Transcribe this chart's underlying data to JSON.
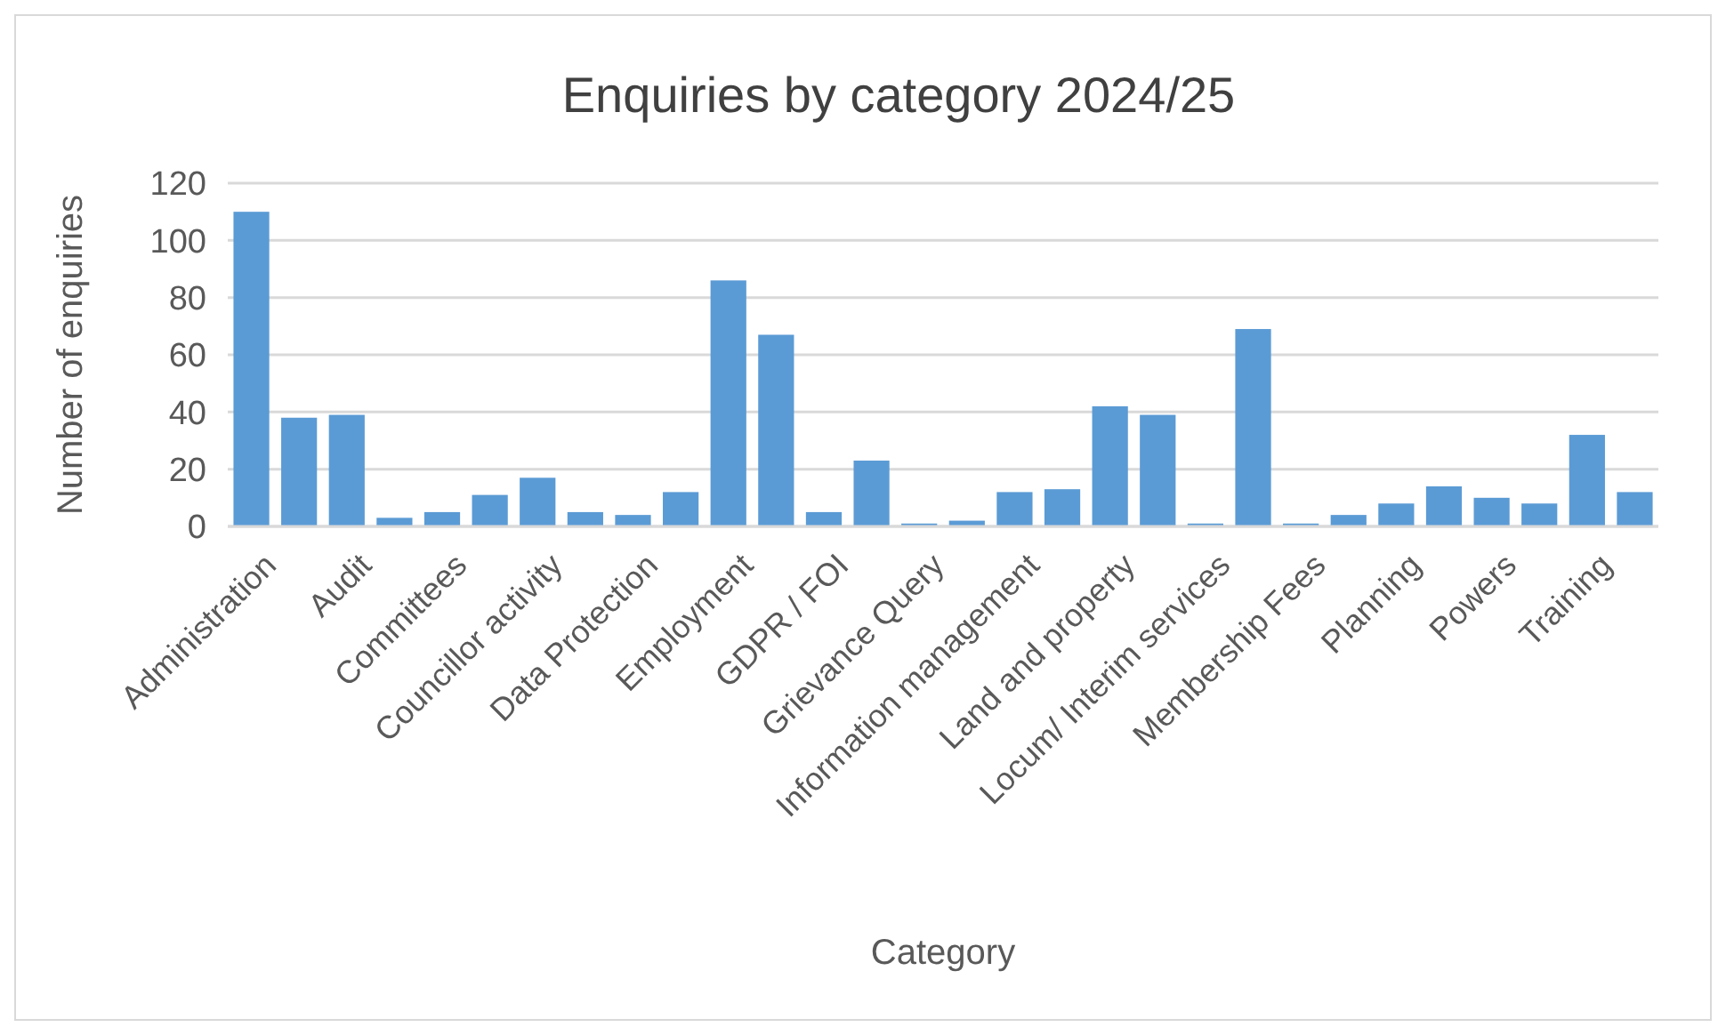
{
  "chart_data": {
    "type": "bar",
    "title": "Enquiries by category 2024/25",
    "xlabel": "Category",
    "ylabel": "Number of enquiries",
    "categories": [
      "Administration",
      null,
      "Audit",
      null,
      "Committees",
      null,
      "Councillor activity",
      null,
      "Data Protection",
      null,
      "Employment",
      null,
      "GDPR / FOI",
      null,
      "Grievance Query",
      null,
      "Information management",
      null,
      "Land and property",
      null,
      "Locum/ Interim services",
      null,
      "Membership Fees",
      null,
      "Planning",
      null,
      "Powers",
      null,
      "Training",
      null
    ],
    "values": [
      110,
      38,
      39,
      3,
      5,
      11,
      17,
      5,
      4,
      12,
      86,
      67,
      5,
      23,
      1,
      2,
      12,
      13,
      42,
      39,
      1,
      69,
      1,
      4,
      8,
      14,
      10,
      8,
      32,
      12
    ],
    "color": "#5b9bd5",
    "ylim": [
      0,
      120
    ],
    "yticks": [
      0,
      20,
      40,
      60,
      80,
      100,
      120
    ],
    "grid": "y"
  }
}
